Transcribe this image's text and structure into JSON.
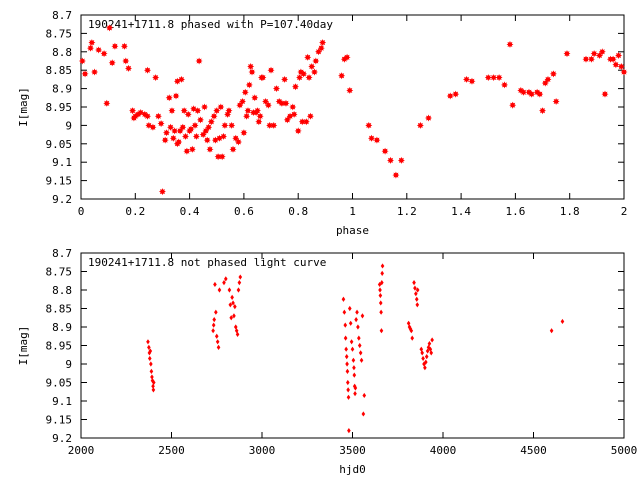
{
  "chart_data": [
    {
      "type": "scatter",
      "title": "190241+1711.8 phased with P=107.40day",
      "xlabel": "phase",
      "ylabel": "I[mag]",
      "xlim": [
        0,
        2
      ],
      "ylim": [
        8.7,
        9.2
      ],
      "y_inverted": true,
      "marker": "star",
      "color": "#ff0000",
      "xticks": [
        "0",
        "0.2",
        "0.4",
        "0.6",
        "0.8",
        "1",
        "1.2",
        "1.4",
        "1.6",
        "1.8",
        "2"
      ],
      "yticks": [
        "8.7",
        "8.75",
        "8.8",
        "8.85",
        "8.9",
        "8.95",
        "9",
        "9.05",
        "9.1",
        "9.15",
        "9.2"
      ],
      "points": [
        [
          0.005,
          8.825
        ],
        [
          0.015,
          8.86
        ],
        [
          0.035,
          8.79
        ],
        [
          0.04,
          8.775
        ],
        [
          0.05,
          8.855
        ],
        [
          0.065,
          8.795
        ],
        [
          0.085,
          8.805
        ],
        [
          0.095,
          8.94
        ],
        [
          0.105,
          8.735
        ],
        [
          0.115,
          8.83
        ],
        [
          0.125,
          8.785
        ],
        [
          0.16,
          8.785
        ],
        [
          0.165,
          8.825
        ],
        [
          0.175,
          8.845
        ],
        [
          0.19,
          8.96
        ],
        [
          0.195,
          8.98
        ],
        [
          0.2,
          8.975
        ],
        [
          0.21,
          8.97
        ],
        [
          0.22,
          8.965
        ],
        [
          0.235,
          8.97
        ],
        [
          0.245,
          8.85
        ],
        [
          0.245,
          8.975
        ],
        [
          0.25,
          9.0
        ],
        [
          0.265,
          9.005
        ],
        [
          0.275,
          8.87
        ],
        [
          0.285,
          8.975
        ],
        [
          0.295,
          8.995
        ],
        [
          0.3,
          9.18
        ],
        [
          0.31,
          9.04
        ],
        [
          0.315,
          9.02
        ],
        [
          0.325,
          8.925
        ],
        [
          0.33,
          9.005
        ],
        [
          0.335,
          8.96
        ],
        [
          0.34,
          9.035
        ],
        [
          0.345,
          9.015
        ],
        [
          0.35,
          8.92
        ],
        [
          0.355,
          8.88
        ],
        [
          0.355,
          9.05
        ],
        [
          0.36,
          9.045
        ],
        [
          0.365,
          9.015
        ],
        [
          0.37,
          8.875
        ],
        [
          0.375,
          9.005
        ],
        [
          0.38,
          8.96
        ],
        [
          0.385,
          9.03
        ],
        [
          0.39,
          9.07
        ],
        [
          0.395,
          8.97
        ],
        [
          0.4,
          9.015
        ],
        [
          0.405,
          9.01
        ],
        [
          0.41,
          9.065
        ],
        [
          0.415,
          8.955
        ],
        [
          0.42,
          9.0
        ],
        [
          0.425,
          9.03
        ],
        [
          0.43,
          8.96
        ],
        [
          0.435,
          8.825
        ],
        [
          0.44,
          8.985
        ],
        [
          0.45,
          9.025
        ],
        [
          0.455,
          8.95
        ],
        [
          0.46,
          9.015
        ],
        [
          0.465,
          9.04
        ],
        [
          0.47,
          9.005
        ],
        [
          0.475,
          9.065
        ],
        [
          0.48,
          8.99
        ],
        [
          0.49,
          8.975
        ],
        [
          0.495,
          9.04
        ],
        [
          0.5,
          8.96
        ],
        [
          0.505,
          9.085
        ],
        [
          0.51,
          9.035
        ],
        [
          0.515,
          8.95
        ],
        [
          0.52,
          9.085
        ],
        [
          0.525,
          9.03
        ],
        [
          0.53,
          9.0
        ],
        [
          0.54,
          8.97
        ],
        [
          0.545,
          8.96
        ],
        [
          0.555,
          9.0
        ],
        [
          0.56,
          9.065
        ],
        [
          0.57,
          9.035
        ],
        [
          0.58,
          9.045
        ],
        [
          0.585,
          8.945
        ],
        [
          0.595,
          8.935
        ],
        [
          0.6,
          9.02
        ],
        [
          0.605,
          8.91
        ],
        [
          0.61,
          8.975
        ],
        [
          0.615,
          8.96
        ],
        [
          0.62,
          8.89
        ],
        [
          0.625,
          8.84
        ],
        [
          0.63,
          8.855
        ],
        [
          0.635,
          8.965
        ],
        [
          0.64,
          8.925
        ],
        [
          0.645,
          8.965
        ],
        [
          0.65,
          8.96
        ],
        [
          0.655,
          8.99
        ],
        [
          0.66,
          8.975
        ],
        [
          0.665,
          8.87
        ],
        [
          0.67,
          8.87
        ],
        [
          0.68,
          8.935
        ],
        [
          0.69,
          8.945
        ],
        [
          0.695,
          9.0
        ],
        [
          0.7,
          8.85
        ],
        [
          0.71,
          9.0
        ],
        [
          0.72,
          8.9
        ],
        [
          0.73,
          8.935
        ],
        [
          0.74,
          8.94
        ],
        [
          0.75,
          8.875
        ],
        [
          0.755,
          8.94
        ],
        [
          0.76,
          8.985
        ],
        [
          0.77,
          8.975
        ],
        [
          0.78,
          8.95
        ],
        [
          0.785,
          8.97
        ],
        [
          0.79,
          8.895
        ],
        [
          0.8,
          9.015
        ],
        [
          0.805,
          8.87
        ],
        [
          0.81,
          8.855
        ],
        [
          0.815,
          8.99
        ],
        [
          0.82,
          8.86
        ],
        [
          0.83,
          8.99
        ],
        [
          0.835,
          8.815
        ],
        [
          0.84,
          8.87
        ],
        [
          0.845,
          8.975
        ],
        [
          0.85,
          8.84
        ],
        [
          0.86,
          8.855
        ],
        [
          0.865,
          8.825
        ],
        [
          0.875,
          8.8
        ],
        [
          0.885,
          8.79
        ],
        [
          0.89,
          8.775
        ],
        [
          0.96,
          8.865
        ],
        [
          0.97,
          8.82
        ],
        [
          0.98,
          8.815
        ],
        [
          0.99,
          8.905
        ],
        [
          1.06,
          9.0
        ],
        [
          1.07,
          9.035
        ],
        [
          1.09,
          9.04
        ],
        [
          1.12,
          9.07
        ],
        [
          1.14,
          9.095
        ],
        [
          1.16,
          9.135
        ],
        [
          1.18,
          9.095
        ],
        [
          1.25,
          9.0
        ],
        [
          1.28,
          8.98
        ],
        [
          1.36,
          8.92
        ],
        [
          1.38,
          8.915
        ],
        [
          1.42,
          8.875
        ],
        [
          1.44,
          8.88
        ],
        [
          1.5,
          8.87
        ],
        [
          1.52,
          8.87
        ],
        [
          1.54,
          8.87
        ],
        [
          1.56,
          8.89
        ],
        [
          1.58,
          8.78
        ],
        [
          1.59,
          8.945
        ],
        [
          1.62,
          8.905
        ],
        [
          1.63,
          8.91
        ],
        [
          1.65,
          8.91
        ],
        [
          1.66,
          8.915
        ],
        [
          1.68,
          8.91
        ],
        [
          1.69,
          8.915
        ],
        [
          1.7,
          8.96
        ],
        [
          1.71,
          8.885
        ],
        [
          1.72,
          8.875
        ],
        [
          1.74,
          8.86
        ],
        [
          1.75,
          8.935
        ],
        [
          1.79,
          8.805
        ],
        [
          1.86,
          8.82
        ],
        [
          1.88,
          8.82
        ],
        [
          1.89,
          8.805
        ],
        [
          1.91,
          8.81
        ],
        [
          1.92,
          8.8
        ],
        [
          1.93,
          8.915
        ],
        [
          1.95,
          8.82
        ],
        [
          1.96,
          8.82
        ],
        [
          1.97,
          8.835
        ],
        [
          1.98,
          8.81
        ],
        [
          1.99,
          8.84
        ],
        [
          2.0,
          8.855
        ]
      ]
    },
    {
      "type": "scatter",
      "title": "190241+1711.8 not phased light curve",
      "xlabel": "hjd0",
      "ylabel": "I[mag]",
      "xlim": [
        2000,
        5000
      ],
      "ylim": [
        8.7,
        9.2
      ],
      "y_inverted": true,
      "marker": "diamond",
      "color": "#ff0000",
      "xticks": [
        "2000",
        "2500",
        "3000",
        "3500",
        "4000",
        "4500",
        "5000"
      ],
      "yticks": [
        "8.7",
        "8.75",
        "8.8",
        "8.85",
        "8.9",
        "8.95",
        "9",
        "9.05",
        "9.1",
        "9.15",
        "9.2"
      ],
      "points": [
        [
          2370,
          8.94
        ],
        [
          2375,
          8.955
        ],
        [
          2378,
          8.97
        ],
        [
          2380,
          8.985
        ],
        [
          2383,
          8.965
        ],
        [
          2386,
          9.0
        ],
        [
          2389,
          9.02
        ],
        [
          2392,
          9.035
        ],
        [
          2395,
          9.045
        ],
        [
          2398,
          9.06
        ],
        [
          2400,
          9.07
        ],
        [
          2402,
          9.05
        ],
        [
          2730,
          8.91
        ],
        [
          2733,
          8.895
        ],
        [
          2736,
          8.88
        ],
        [
          2740,
          8.785
        ],
        [
          2745,
          8.86
        ],
        [
          2750,
          8.925
        ],
        [
          2755,
          8.94
        ],
        [
          2760,
          8.955
        ],
        [
          2765,
          8.8
        ],
        [
          2790,
          8.78
        ],
        [
          2800,
          8.77
        ],
        [
          2820,
          8.8
        ],
        [
          2825,
          8.84
        ],
        [
          2830,
          8.875
        ],
        [
          2835,
          8.82
        ],
        [
          2840,
          8.835
        ],
        [
          2845,
          8.87
        ],
        [
          2850,
          8.845
        ],
        [
          2855,
          8.9
        ],
        [
          2860,
          8.91
        ],
        [
          2865,
          8.92
        ],
        [
          2870,
          8.8
        ],
        [
          2875,
          8.78
        ],
        [
          2880,
          8.765
        ],
        [
          3450,
          8.825
        ],
        [
          3455,
          8.86
        ],
        [
          3460,
          8.895
        ],
        [
          3462,
          8.93
        ],
        [
          3465,
          8.96
        ],
        [
          3468,
          8.98
        ],
        [
          3470,
          9.0
        ],
        [
          3472,
          9.02
        ],
        [
          3474,
          9.05
        ],
        [
          3476,
          9.07
        ],
        [
          3478,
          9.09
        ],
        [
          3480,
          9.18
        ],
        [
          3485,
          8.85
        ],
        [
          3490,
          8.89
        ],
        [
          3495,
          8.94
        ],
        [
          3500,
          8.96
        ],
        [
          3505,
          8.99
        ],
        [
          3508,
          9.01
        ],
        [
          3510,
          9.03
        ],
        [
          3512,
          9.06
        ],
        [
          3514,
          9.08
        ],
        [
          3516,
          9.065
        ],
        [
          3520,
          8.88
        ],
        [
          3525,
          8.86
        ],
        [
          3530,
          8.9
        ],
        [
          3535,
          8.93
        ],
        [
          3540,
          8.95
        ],
        [
          3545,
          8.97
        ],
        [
          3550,
          8.99
        ],
        [
          3555,
          8.87
        ],
        [
          3560,
          9.135
        ],
        [
          3565,
          9.085
        ],
        [
          3650,
          8.785
        ],
        [
          3652,
          8.8
        ],
        [
          3654,
          8.815
        ],
        [
          3656,
          8.835
        ],
        [
          3658,
          8.86
        ],
        [
          3660,
          8.91
        ],
        [
          3662,
          8.78
        ],
        [
          3664,
          8.755
        ],
        [
          3666,
          8.735
        ],
        [
          3810,
          8.89
        ],
        [
          3815,
          8.9
        ],
        [
          3820,
          8.905
        ],
        [
          3825,
          8.91
        ],
        [
          3830,
          8.93
        ],
        [
          3840,
          8.78
        ],
        [
          3845,
          8.795
        ],
        [
          3850,
          8.81
        ],
        [
          3855,
          8.825
        ],
        [
          3858,
          8.84
        ],
        [
          3860,
          8.8
        ],
        [
          3880,
          8.96
        ],
        [
          3885,
          8.97
        ],
        [
          3890,
          8.985
        ],
        [
          3895,
          9.0
        ],
        [
          3900,
          9.01
        ],
        [
          3905,
          8.995
        ],
        [
          3910,
          8.98
        ],
        [
          3915,
          8.965
        ],
        [
          3920,
          8.955
        ],
        [
          3925,
          8.945
        ],
        [
          3930,
          8.96
        ],
        [
          3935,
          8.97
        ],
        [
          3940,
          8.935
        ],
        [
          4600,
          8.91
        ],
        [
          4660,
          8.885
        ]
      ]
    }
  ]
}
